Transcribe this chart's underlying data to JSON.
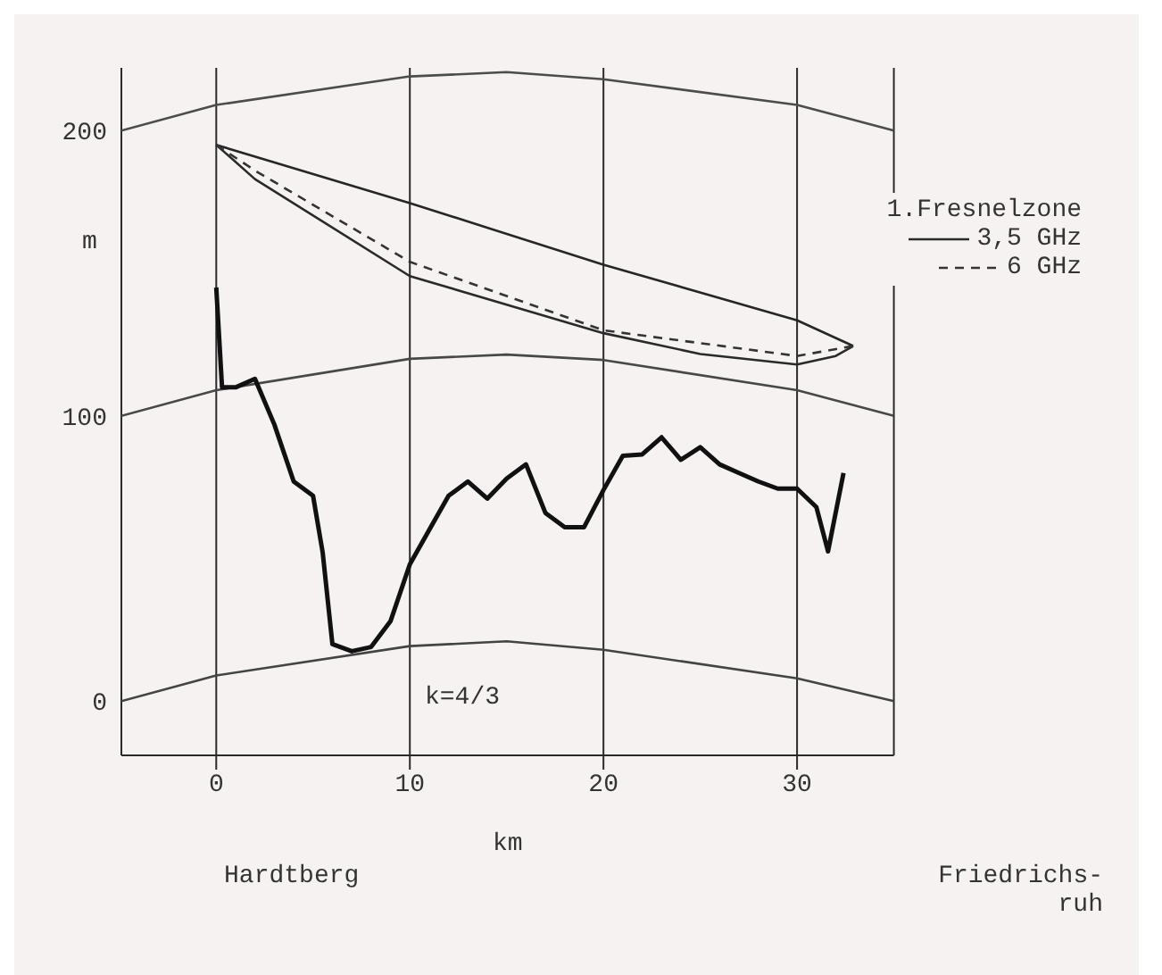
{
  "chart_data": {
    "type": "line",
    "xlabel": "km",
    "ylabel": "m",
    "legend_title": "1.Fresnelzone",
    "xlim": [
      -4.9,
      35
    ],
    "xticks": [
      0,
      10,
      20,
      30
    ],
    "ylim": [
      -19,
      222
    ],
    "yticks": [
      0,
      100,
      200
    ],
    "grid": "x",
    "legend": "top right",
    "marker": "none",
    "annotations": [
      "k=4/3",
      "Hardtberg",
      "Friedrichs-ruh"
    ],
    "series": [
      {
        "color": "#262626",
        "line_style": "solid",
        "x": [
          0,
          10,
          20,
          30,
          32.9
        ],
        "values": [
          195,
          174.6,
          153,
          133.5,
          124.5
        ]
      },
      {
        "name": "3,5 GHz",
        "color": "#2a2a2a",
        "line_style": "solid",
        "x": [
          0,
          2,
          10,
          20,
          25,
          30,
          32,
          32.9
        ],
        "values": [
          195,
          183,
          149,
          129,
          121.7,
          118,
          121,
          124.5
        ]
      },
      {
        "name": "6 GHz",
        "color": "#333333",
        "line_style": "dashed",
        "x": [
          0,
          2,
          10,
          20,
          30,
          32.9
        ],
        "values": [
          195,
          186,
          154,
          130,
          121,
          124.5
        ]
      },
      {
        "color": "#444444",
        "line_style": "solid",
        "x": [
          -4.9,
          0,
          10,
          15,
          20,
          30,
          35
        ],
        "values": [
          0,
          9,
          19.3,
          21,
          18,
          8,
          0
        ]
      },
      {
        "color": "#484848",
        "line_style": "solid",
        "x": [
          -4.9,
          0,
          10,
          15,
          20,
          30,
          35
        ],
        "values": [
          100,
          109,
          120,
          121.5,
          119.6,
          109,
          100
        ]
      },
      {
        "color": "#4c4c4c",
        "line_style": "solid",
        "x": [
          -4.9,
          0,
          10,
          15,
          20,
          30,
          35
        ],
        "values": [
          200,
          209,
          219,
          220.5,
          218,
          209,
          200
        ]
      },
      {
        "color": "#111111",
        "line_style": "solid",
        "x": [
          0,
          0.3,
          1,
          2,
          3,
          4,
          5,
          5.5,
          6,
          7,
          8,
          9,
          10,
          11,
          12,
          13,
          14,
          15,
          16,
          17,
          18,
          19,
          20,
          21,
          22,
          23,
          24,
          25,
          26,
          27,
          28,
          29,
          30,
          31,
          31.6,
          32.4
        ],
        "values": [
          145,
          110,
          110,
          113,
          97,
          77,
          72,
          52,
          20,
          17.5,
          19,
          28,
          48,
          60,
          72,
          77,
          71,
          78,
          83,
          66,
          61,
          61,
          74,
          86,
          86.5,
          92.5,
          84.6,
          89,
          83,
          80,
          77,
          74.5,
          74.5,
          68,
          52.5,
          80
        ]
      }
    ]
  }
}
